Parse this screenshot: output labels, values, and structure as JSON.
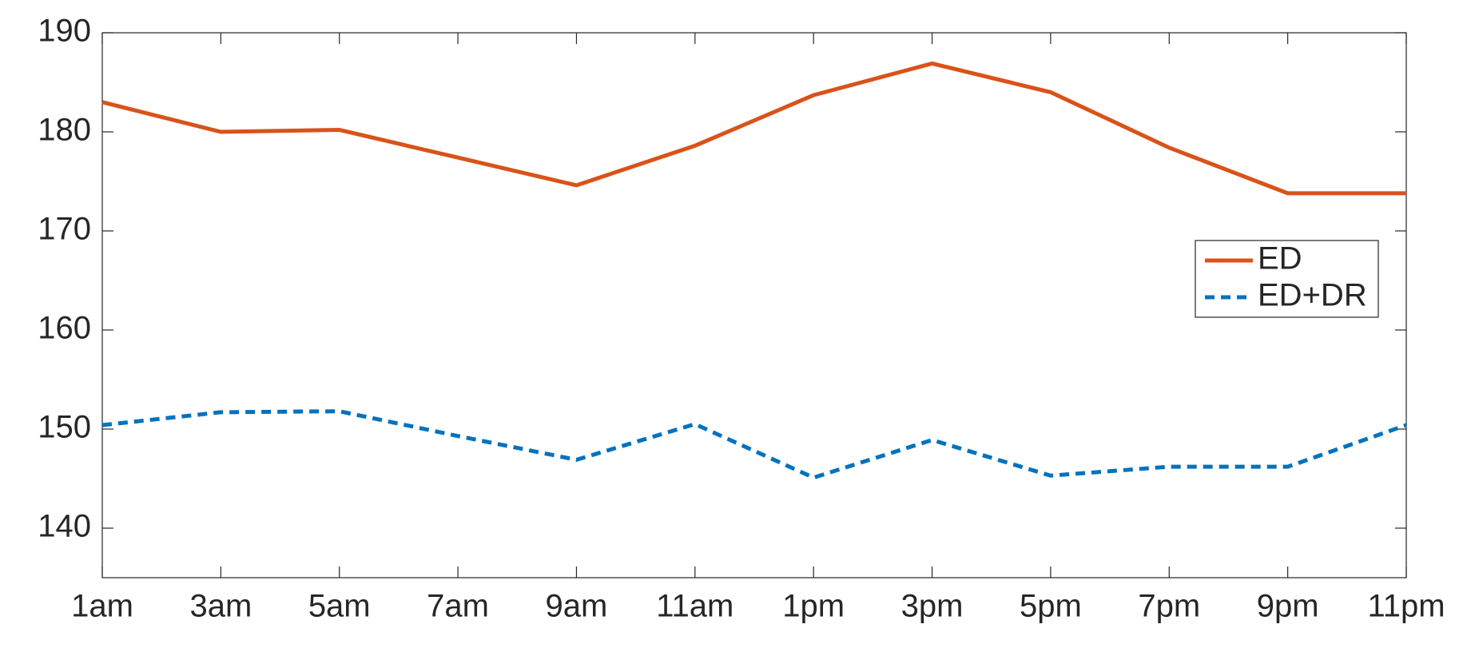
{
  "chart_data": {
    "type": "line",
    "categories": [
      "1am",
      "3am",
      "5am",
      "7am",
      "9am",
      "11am",
      "1pm",
      "3pm",
      "5pm",
      "7pm",
      "9pm",
      "11pm"
    ],
    "series": [
      {
        "name": "ED",
        "color": "#d95319",
        "dash": "solid",
        "values": [
          183,
          180,
          180.2,
          177.4,
          174.6,
          178.6,
          183.7,
          186.9,
          184,
          178.4,
          173.8,
          173.8
        ]
      },
      {
        "name": "ED+DR",
        "color": "#0072bd",
        "dash": "dashed",
        "values": [
          150.4,
          151.7,
          151.8,
          149.3,
          146.9,
          150.5,
          145.1,
          148.9,
          145.3,
          146.2,
          146.2,
          150.4
        ]
      }
    ],
    "ylim": [
      135,
      190
    ],
    "yticks": [
      140,
      150,
      160,
      170,
      180,
      190
    ],
    "grid": false,
    "legend": "right"
  }
}
